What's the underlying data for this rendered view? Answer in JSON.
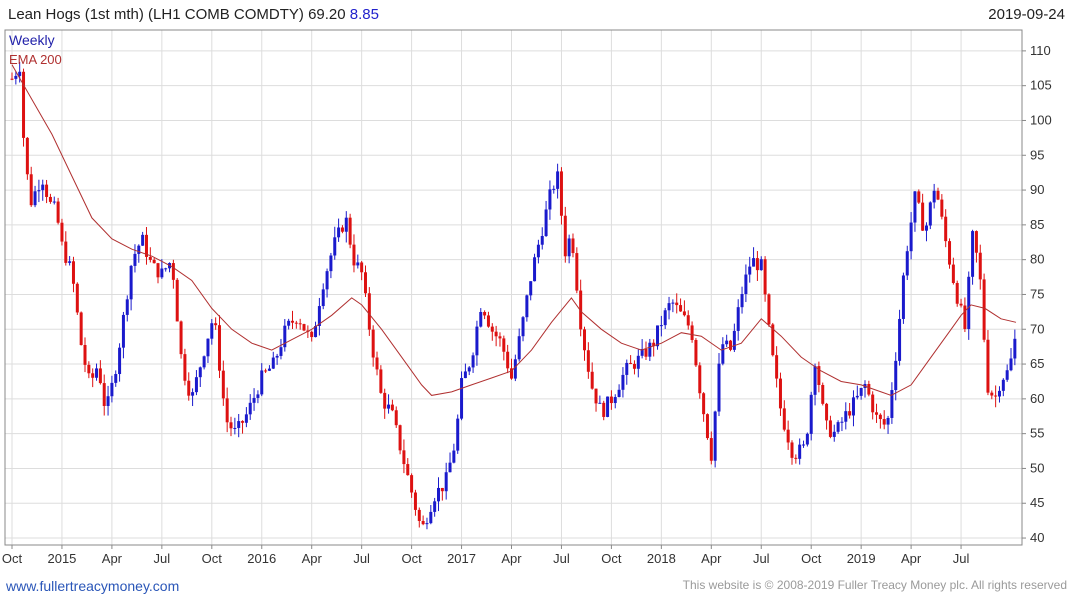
{
  "header": {
    "title": "Lean Hogs (1st mth)  (LH1 COMB COMDTY)",
    "last": "69.20",
    "change": "8.85",
    "date": "2019-09-24"
  },
  "legend": {
    "period": "Weekly",
    "ema": "EMA 200"
  },
  "footer": {
    "site": "www.fullertreacymoney.com",
    "copyright": "This website is © 2008-2019 Fuller Treacy Money plc. All rights reserved"
  },
  "colors": {
    "up": "#1a1acc",
    "down": "#dd1111",
    "ema": "#b03030",
    "grid": "#dddddd"
  },
  "chart_data": {
    "type": "line",
    "title": "Lean Hogs (1st mth)  (LH1 COMB COMDTY)",
    "ylim": [
      39,
      113
    ],
    "yticks": [
      40,
      45,
      50,
      55,
      60,
      65,
      70,
      75,
      80,
      85,
      90,
      95,
      100,
      105,
      110
    ],
    "xlim": [
      2014.75,
      2019.78
    ],
    "xticks": [
      {
        "label": "Oct",
        "x": 2014.75
      },
      {
        "label": "2015",
        "x": 2015.0
      },
      {
        "label": "Apr",
        "x": 2015.25
      },
      {
        "label": "Jul",
        "x": 2015.5
      },
      {
        "label": "Oct",
        "x": 2015.75
      },
      {
        "label": "2016",
        "x": 2016.0
      },
      {
        "label": "Apr",
        "x": 2016.25
      },
      {
        "label": "Jul",
        "x": 2016.5
      },
      {
        "label": "Oct",
        "x": 2016.75
      },
      {
        "label": "2017",
        "x": 2017.0
      },
      {
        "label": "Apr",
        "x": 2017.25
      },
      {
        "label": "Jul",
        "x": 2017.5
      },
      {
        "label": "Oct",
        "x": 2017.75
      },
      {
        "label": "2018",
        "x": 2018.0
      },
      {
        "label": "Apr",
        "x": 2018.25
      },
      {
        "label": "Jul",
        "x": 2018.5
      },
      {
        "label": "Oct",
        "x": 2018.75
      },
      {
        "label": "2019",
        "x": 2019.0
      },
      {
        "label": "Apr",
        "x": 2019.25
      },
      {
        "label": "Jul",
        "x": 2019.5
      }
    ],
    "price_anchors": [
      [
        2014.75,
        106
      ],
      [
        2014.79,
        108
      ],
      [
        2014.8,
        100
      ],
      [
        2014.84,
        88
      ],
      [
        2014.9,
        92
      ],
      [
        2014.94,
        88
      ],
      [
        2014.97,
        87
      ],
      [
        2015.0,
        82
      ],
      [
        2015.05,
        78
      ],
      [
        2015.1,
        67
      ],
      [
        2015.14,
        62
      ],
      [
        2015.18,
        65
      ],
      [
        2015.22,
        58
      ],
      [
        2015.26,
        63
      ],
      [
        2015.3,
        70
      ],
      [
        2015.35,
        80
      ],
      [
        2015.4,
        83
      ],
      [
        2015.45,
        79
      ],
      [
        2015.5,
        78
      ],
      [
        2015.55,
        80
      ],
      [
        2015.6,
        65
      ],
      [
        2015.65,
        60
      ],
      [
        2015.72,
        68
      ],
      [
        2015.76,
        72
      ],
      [
        2015.82,
        57
      ],
      [
        2015.87,
        55
      ],
      [
        2015.93,
        58
      ],
      [
        2016.0,
        63
      ],
      [
        2016.06,
        65
      ],
      [
        2016.12,
        70
      ],
      [
        2016.18,
        72
      ],
      [
        2016.25,
        68
      ],
      [
        2016.3,
        76
      ],
      [
        2016.36,
        82
      ],
      [
        2016.42,
        86
      ],
      [
        2016.46,
        80
      ],
      [
        2016.5,
        78
      ],
      [
        2016.55,
        68
      ],
      [
        2016.6,
        60
      ],
      [
        2016.65,
        58
      ],
      [
        2016.72,
        50
      ],
      [
        2016.8,
        41
      ],
      [
        2016.86,
        46
      ],
      [
        2016.92,
        48
      ],
      [
        2016.97,
        54
      ],
      [
        2017.0,
        62
      ],
      [
        2017.05,
        66
      ],
      [
        2017.1,
        74
      ],
      [
        2017.15,
        70
      ],
      [
        2017.2,
        68
      ],
      [
        2017.25,
        63
      ],
      [
        2017.3,
        70
      ],
      [
        2017.35,
        78
      ],
      [
        2017.4,
        84
      ],
      [
        2017.45,
        90
      ],
      [
        2017.48,
        92
      ],
      [
        2017.52,
        81
      ],
      [
        2017.55,
        84
      ],
      [
        2017.6,
        70
      ],
      [
        2017.65,
        62
      ],
      [
        2017.7,
        58
      ],
      [
        2017.75,
        60
      ],
      [
        2017.82,
        64
      ],
      [
        2017.9,
        66
      ],
      [
        2017.96,
        68
      ],
      [
        2018.0,
        71
      ],
      [
        2018.05,
        74
      ],
      [
        2018.1,
        72
      ],
      [
        2018.15,
        70
      ],
      [
        2018.2,
        60
      ],
      [
        2018.25,
        52
      ],
      [
        2018.3,
        68
      ],
      [
        2018.35,
        67
      ],
      [
        2018.4,
        75
      ],
      [
        2018.45,
        80
      ],
      [
        2018.5,
        79
      ],
      [
        2018.55,
        67
      ],
      [
        2018.6,
        58
      ],
      [
        2018.66,
        52
      ],
      [
        2018.72,
        53
      ],
      [
        2018.77,
        66
      ],
      [
        2018.82,
        56
      ],
      [
        2018.87,
        55
      ],
      [
        2018.93,
        58
      ],
      [
        2018.98,
        60
      ],
      [
        2019.02,
        62
      ],
      [
        2019.08,
        57
      ],
      [
        2019.13,
        56
      ],
      [
        2019.18,
        68
      ],
      [
        2019.22,
        80
      ],
      [
        2019.27,
        89
      ],
      [
        2019.32,
        84
      ],
      [
        2019.37,
        91
      ],
      [
        2019.42,
        83
      ],
      [
        2019.47,
        76
      ],
      [
        2019.52,
        70
      ],
      [
        2019.56,
        84
      ],
      [
        2019.6,
        76
      ],
      [
        2019.63,
        62
      ],
      [
        2019.67,
        60
      ],
      [
        2019.7,
        63
      ],
      [
        2019.74,
        64
      ],
      [
        2019.775,
        69.2
      ]
    ],
    "ema200": [
      [
        2014.75,
        108
      ],
      [
        2014.85,
        103
      ],
      [
        2014.95,
        98
      ],
      [
        2015.05,
        92
      ],
      [
        2015.15,
        86
      ],
      [
        2015.25,
        83
      ],
      [
        2015.35,
        81.5
      ],
      [
        2015.45,
        80.5
      ],
      [
        2015.55,
        79
      ],
      [
        2015.65,
        77
      ],
      [
        2015.75,
        73
      ],
      [
        2015.85,
        70
      ],
      [
        2015.95,
        68
      ],
      [
        2016.05,
        67
      ],
      [
        2016.15,
        68.5
      ],
      [
        2016.25,
        70
      ],
      [
        2016.35,
        72
      ],
      [
        2016.45,
        74.5
      ],
      [
        2016.5,
        73.5
      ],
      [
        2016.6,
        70
      ],
      [
        2016.7,
        66
      ],
      [
        2016.8,
        62
      ],
      [
        2016.85,
        60.5
      ],
      [
        2016.95,
        61
      ],
      [
        2017.05,
        62
      ],
      [
        2017.15,
        63
      ],
      [
        2017.25,
        64
      ],
      [
        2017.35,
        67
      ],
      [
        2017.45,
        71
      ],
      [
        2017.55,
        74.5
      ],
      [
        2017.6,
        72.5
      ],
      [
        2017.7,
        70
      ],
      [
        2017.8,
        68
      ],
      [
        2017.9,
        67
      ],
      [
        2018.0,
        68
      ],
      [
        2018.1,
        69.5
      ],
      [
        2018.2,
        69
      ],
      [
        2018.3,
        67
      ],
      [
        2018.4,
        68
      ],
      [
        2018.5,
        71.5
      ],
      [
        2018.6,
        69
      ],
      [
        2018.7,
        66
      ],
      [
        2018.8,
        64
      ],
      [
        2018.9,
        62.5
      ],
      [
        2019.0,
        62
      ],
      [
        2019.1,
        61
      ],
      [
        2019.15,
        60.5
      ],
      [
        2019.25,
        62
      ],
      [
        2019.35,
        66
      ],
      [
        2019.45,
        70
      ],
      [
        2019.5,
        72
      ],
      [
        2019.55,
        73.5
      ],
      [
        2019.62,
        73
      ],
      [
        2019.7,
        71.5
      ],
      [
        2019.775,
        71
      ]
    ]
  }
}
